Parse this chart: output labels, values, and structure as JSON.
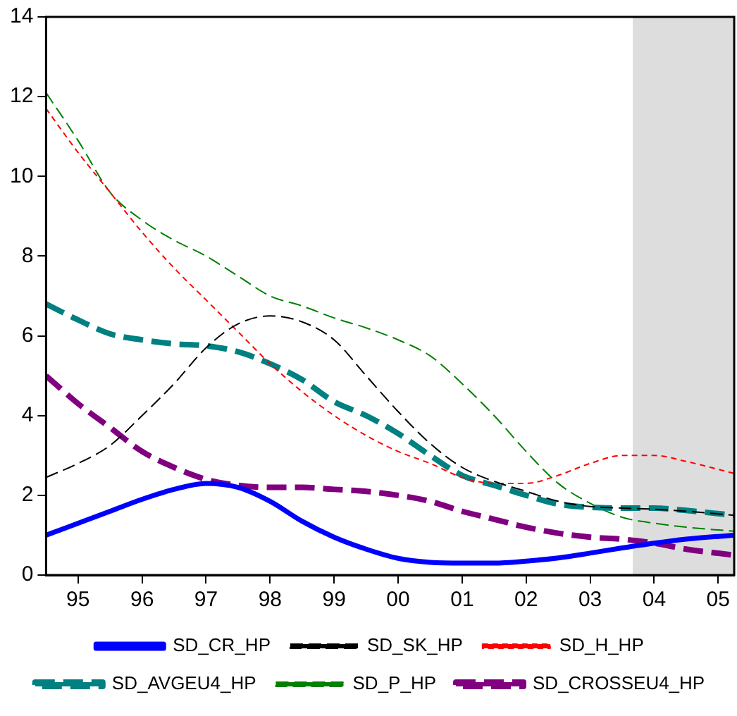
{
  "chart_data": {
    "type": "line",
    "xlim": [
      "1995-01",
      "2005-10"
    ],
    "xticks": [
      {
        "value": "1995-07",
        "label": "95"
      },
      {
        "value": "1996-07",
        "label": "96"
      },
      {
        "value": "1997-07",
        "label": "97"
      },
      {
        "value": "1998-07",
        "label": "98"
      },
      {
        "value": "1999-07",
        "label": "99"
      },
      {
        "value": "2000-07",
        "label": "00"
      },
      {
        "value": "2001-07",
        "label": "01"
      },
      {
        "value": "2002-07",
        "label": "02"
      },
      {
        "value": "2003-07",
        "label": "03"
      },
      {
        "value": "2004-07",
        "label": "04"
      },
      {
        "value": "2005-07",
        "label": "05"
      }
    ],
    "ylim": [
      0,
      14
    ],
    "yticks": [
      0,
      2,
      4,
      6,
      8,
      10,
      12,
      14
    ],
    "grid": false,
    "legend": "bottom",
    "marker": "none",
    "bands": [
      {
        "axis": "x",
        "from": "2004-03",
        "to": "2005-10",
        "color": "#dddddd"
      }
    ],
    "x": [
      "1995-01",
      "1995-07",
      "1996-01",
      "1996-07",
      "1997-01",
      "1997-07",
      "1998-01",
      "1998-07",
      "1999-01",
      "1999-07",
      "2000-01",
      "2000-07",
      "2001-01",
      "2001-07",
      "2002-01",
      "2002-07",
      "2003-01",
      "2003-07",
      "2004-01",
      "2004-07",
      "2005-01",
      "2005-10"
    ],
    "series": [
      {
        "name": "SD_CR_HP",
        "color": "#0000ff",
        "line_style": "solid",
        "values": [
          1.0,
          1.3,
          1.6,
          1.9,
          2.15,
          2.3,
          2.2,
          1.85,
          1.35,
          0.95,
          0.65,
          0.42,
          0.32,
          0.3,
          0.3,
          0.35,
          0.43,
          0.55,
          0.68,
          0.8,
          0.9,
          1.0
        ]
      },
      {
        "name": "SD_SK_HP",
        "color": "#000000",
        "line_style": "dashed",
        "values": [
          2.45,
          2.8,
          3.25,
          4.0,
          4.8,
          5.7,
          6.3,
          6.5,
          6.35,
          5.9,
          5.0,
          4.1,
          3.3,
          2.7,
          2.35,
          2.1,
          1.85,
          1.72,
          1.68,
          1.65,
          1.6,
          1.5
        ]
      },
      {
        "name": "SD_H_HP",
        "color": "#ff0000",
        "line_style": "dotted",
        "values": [
          11.7,
          10.6,
          9.6,
          8.6,
          7.7,
          6.9,
          6.1,
          5.3,
          4.6,
          4.0,
          3.5,
          3.1,
          2.8,
          2.45,
          2.3,
          2.3,
          2.5,
          2.8,
          3.0,
          3.0,
          2.85,
          2.55
        ]
      },
      {
        "name": "SD_AVGEU4_HP",
        "color": "#008080",
        "line_style": "dashed",
        "values": [
          6.8,
          6.4,
          6.05,
          5.9,
          5.8,
          5.75,
          5.6,
          5.3,
          4.9,
          4.35,
          4.0,
          3.55,
          3.0,
          2.5,
          2.25,
          2.0,
          1.78,
          1.7,
          1.68,
          1.68,
          1.62,
          1.5
        ]
      },
      {
        "name": "SD_P_HP",
        "color": "#008000",
        "line_style": "dashed",
        "values": [
          12.1,
          10.9,
          9.6,
          8.9,
          8.4,
          8.0,
          7.5,
          7.0,
          6.75,
          6.45,
          6.2,
          5.9,
          5.5,
          4.8,
          4.0,
          3.1,
          2.3,
          1.8,
          1.45,
          1.3,
          1.2,
          1.1
        ]
      },
      {
        "name": "SD_CROSSEU4_HP",
        "color": "#800080",
        "line_style": "dashed",
        "values": [
          5.0,
          4.3,
          3.7,
          3.1,
          2.7,
          2.4,
          2.25,
          2.2,
          2.2,
          2.15,
          2.1,
          2.0,
          1.85,
          1.6,
          1.4,
          1.2,
          1.05,
          0.95,
          0.9,
          0.8,
          0.65,
          0.5
        ]
      }
    ]
  }
}
